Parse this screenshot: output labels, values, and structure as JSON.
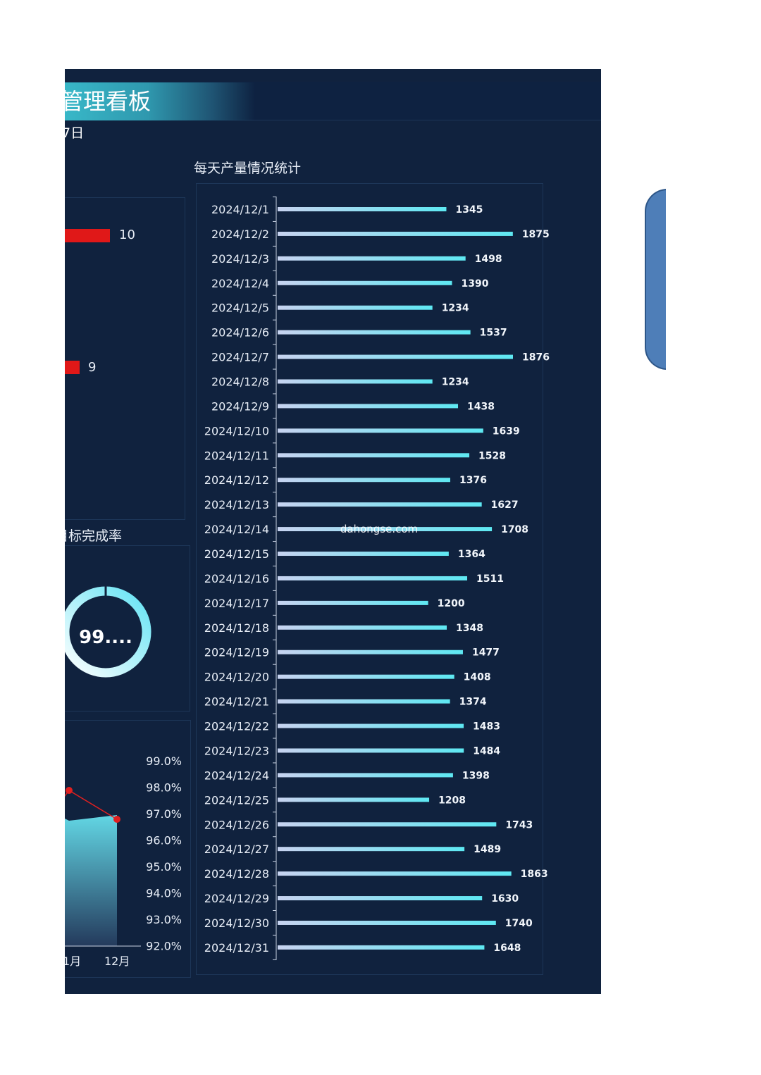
{
  "header": {
    "title": "管理看板",
    "date_fragment": "7日"
  },
  "left_panels": {
    "ranking_values": [
      "10",
      "9"
    ],
    "completion_title": "目标完成率",
    "completion_value_text": "99....",
    "completion_pct": 0.99,
    "monthly_axis_labels": [
      "99.0%",
      "98.0%",
      "97.0%",
      "96.0%",
      "95.0%",
      "94.0%",
      "93.0%",
      "92.0%"
    ],
    "monthly_x_labels": [
      "1月",
      "12月"
    ]
  },
  "watermark": "dahongse.com",
  "colors": {
    "dashboard_bg": "#10223e",
    "bar_start": "#c7d3f0",
    "bar_end": "#5ee8f2",
    "accent_red": "#e01818"
  },
  "chart_data": {
    "type": "bar",
    "orientation": "horizontal",
    "title": "每天产量情况统计",
    "categories": [
      "2024/12/1",
      "2024/12/2",
      "2024/12/3",
      "2024/12/4",
      "2024/12/5",
      "2024/12/6",
      "2024/12/7",
      "2024/12/8",
      "2024/12/9",
      "2024/12/10",
      "2024/12/11",
      "2024/12/12",
      "2024/12/13",
      "2024/12/14",
      "2024/12/15",
      "2024/12/16",
      "2024/12/17",
      "2024/12/18",
      "2024/12/19",
      "2024/12/20",
      "2024/12/21",
      "2024/12/22",
      "2024/12/23",
      "2024/12/24",
      "2024/12/25",
      "2024/12/26",
      "2024/12/27",
      "2024/12/28",
      "2024/12/29",
      "2024/12/30",
      "2024/12/31"
    ],
    "values": [
      1345,
      1875,
      1498,
      1390,
      1234,
      1537,
      1876,
      1234,
      1438,
      1639,
      1528,
      1376,
      1627,
      1708,
      1364,
      1511,
      1200,
      1348,
      1477,
      1408,
      1374,
      1483,
      1484,
      1398,
      1208,
      1743,
      1489,
      1863,
      1630,
      1740,
      1648
    ],
    "xlim": [
      0,
      1876
    ],
    "grid": false
  }
}
